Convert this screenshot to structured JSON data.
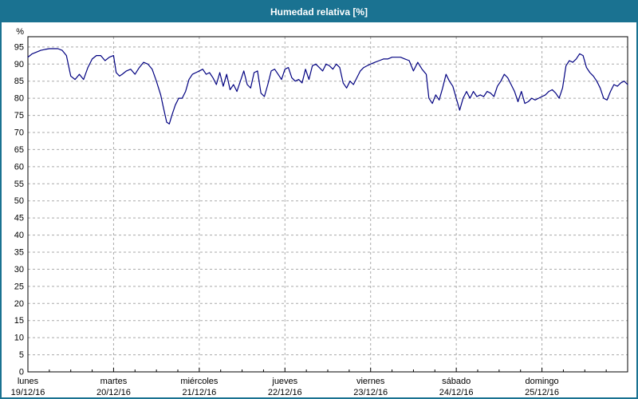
{
  "header": {
    "title": "Humedad relativa [%]"
  },
  "colors": {
    "accent": "#1a7291",
    "line": "#000080",
    "grid": "#a9a9a9",
    "axis": "#000000",
    "plot_bg": "#ffffff",
    "title_text": "#ffffff"
  },
  "chart_data": {
    "type": "line",
    "title": "Humedad relativa [%]",
    "xlabel": "",
    "ylabel": "%",
    "ylim": [
      0,
      98
    ],
    "yticks": [
      0,
      5,
      10,
      15,
      20,
      25,
      30,
      35,
      40,
      45,
      50,
      55,
      60,
      65,
      70,
      75,
      80,
      85,
      90,
      95
    ],
    "grid": true,
    "legend_position": "none",
    "x_days": [
      {
        "name": "lunes",
        "date": "19/12/16"
      },
      {
        "name": "martes",
        "date": "20/12/16"
      },
      {
        "name": "miércoles",
        "date": "21/12/16"
      },
      {
        "name": "jueves",
        "date": "22/12/16"
      },
      {
        "name": "viernes",
        "date": "23/12/16"
      },
      {
        "name": "sábado",
        "date": "24/12/16"
      },
      {
        "name": "domingo",
        "date": "25/12/16"
      }
    ],
    "series": [
      {
        "name": "Humedad relativa",
        "color": "#000080",
        "points": [
          [
            0.0,
            92.0
          ],
          [
            0.05,
            93.0
          ],
          [
            0.1,
            93.5
          ],
          [
            0.15,
            94.0
          ],
          [
            0.2,
            94.3
          ],
          [
            0.25,
            94.5
          ],
          [
            0.3,
            94.5
          ],
          [
            0.35,
            94.5
          ],
          [
            0.4,
            94.0
          ],
          [
            0.45,
            92.5
          ],
          [
            0.5,
            86.5
          ],
          [
            0.55,
            85.5
          ],
          [
            0.6,
            87.0
          ],
          [
            0.65,
            85.5
          ],
          [
            0.7,
            89.0
          ],
          [
            0.75,
            91.5
          ],
          [
            0.8,
            92.5
          ],
          [
            0.85,
            92.5
          ],
          [
            0.9,
            91.0
          ],
          [
            0.95,
            92.0
          ],
          [
            1.0,
            92.5
          ],
          [
            1.03,
            87.5
          ],
          [
            1.07,
            86.5
          ],
          [
            1.1,
            87.0
          ],
          [
            1.15,
            88.0
          ],
          [
            1.2,
            88.5
          ],
          [
            1.25,
            87.0
          ],
          [
            1.3,
            89.0
          ],
          [
            1.35,
            90.5
          ],
          [
            1.4,
            90.0
          ],
          [
            1.45,
            88.5
          ],
          [
            1.5,
            85.0
          ],
          [
            1.55,
            81.0
          ],
          [
            1.58,
            77.5
          ],
          [
            1.62,
            73.0
          ],
          [
            1.65,
            72.5
          ],
          [
            1.68,
            75.0
          ],
          [
            1.72,
            78.0
          ],
          [
            1.76,
            80.0
          ],
          [
            1.8,
            80.0
          ],
          [
            1.84,
            82.0
          ],
          [
            1.88,
            85.5
          ],
          [
            1.92,
            87.0
          ],
          [
            1.96,
            87.5
          ],
          [
            2.0,
            88.0
          ],
          [
            2.04,
            88.5
          ],
          [
            2.08,
            87.0
          ],
          [
            2.12,
            87.5
          ],
          [
            2.16,
            86.0
          ],
          [
            2.2,
            84.0
          ],
          [
            2.24,
            87.5
          ],
          [
            2.28,
            83.5
          ],
          [
            2.32,
            87.0
          ],
          [
            2.36,
            82.5
          ],
          [
            2.4,
            84.0
          ],
          [
            2.44,
            82.0
          ],
          [
            2.48,
            85.0
          ],
          [
            2.52,
            88.0
          ],
          [
            2.56,
            84.0
          ],
          [
            2.6,
            83.0
          ],
          [
            2.64,
            87.5
          ],
          [
            2.68,
            88.0
          ],
          [
            2.72,
            81.5
          ],
          [
            2.76,
            80.5
          ],
          [
            2.8,
            84.0
          ],
          [
            2.84,
            88.0
          ],
          [
            2.88,
            88.5
          ],
          [
            2.92,
            87.0
          ],
          [
            2.96,
            85.5
          ],
          [
            3.0,
            88.5
          ],
          [
            3.04,
            89.0
          ],
          [
            3.08,
            86.0
          ],
          [
            3.12,
            85.0
          ],
          [
            3.16,
            85.5
          ],
          [
            3.2,
            84.5
          ],
          [
            3.24,
            88.5
          ],
          [
            3.28,
            85.5
          ],
          [
            3.32,
            89.5
          ],
          [
            3.36,
            90.0
          ],
          [
            3.4,
            89.0
          ],
          [
            3.44,
            88.0
          ],
          [
            3.48,
            90.0
          ],
          [
            3.52,
            89.5
          ],
          [
            3.56,
            88.5
          ],
          [
            3.6,
            90.0
          ],
          [
            3.64,
            89.0
          ],
          [
            3.68,
            84.5
          ],
          [
            3.72,
            83.0
          ],
          [
            3.76,
            85.0
          ],
          [
            3.8,
            84.0
          ],
          [
            3.84,
            86.0
          ],
          [
            3.88,
            88.0
          ],
          [
            3.92,
            89.0
          ],
          [
            3.96,
            89.5
          ],
          [
            4.0,
            90.0
          ],
          [
            4.05,
            90.5
          ],
          [
            4.1,
            91.0
          ],
          [
            4.15,
            91.5
          ],
          [
            4.2,
            91.5
          ],
          [
            4.25,
            92.0
          ],
          [
            4.3,
            92.0
          ],
          [
            4.35,
            92.0
          ],
          [
            4.4,
            91.5
          ],
          [
            4.45,
            91.0
          ],
          [
            4.5,
            88.0
          ],
          [
            4.55,
            90.5
          ],
          [
            4.6,
            88.5
          ],
          [
            4.65,
            87.0
          ],
          [
            4.68,
            80.0
          ],
          [
            4.72,
            78.5
          ],
          [
            4.76,
            81.0
          ],
          [
            4.8,
            79.5
          ],
          [
            4.84,
            83.0
          ],
          [
            4.88,
            87.0
          ],
          [
            4.92,
            85.0
          ],
          [
            4.96,
            83.5
          ],
          [
            5.0,
            80.0
          ],
          [
            5.04,
            76.5
          ],
          [
            5.08,
            80.0
          ],
          [
            5.12,
            82.0
          ],
          [
            5.16,
            80.0
          ],
          [
            5.2,
            82.0
          ],
          [
            5.24,
            80.5
          ],
          [
            5.28,
            81.0
          ],
          [
            5.32,
            80.5
          ],
          [
            5.36,
            82.0
          ],
          [
            5.4,
            81.5
          ],
          [
            5.44,
            80.5
          ],
          [
            5.48,
            83.5
          ],
          [
            5.52,
            85.0
          ],
          [
            5.56,
            87.0
          ],
          [
            5.6,
            86.0
          ],
          [
            5.64,
            84.0
          ],
          [
            5.68,
            82.0
          ],
          [
            5.72,
            79.0
          ],
          [
            5.76,
            82.0
          ],
          [
            5.8,
            78.5
          ],
          [
            5.84,
            79.0
          ],
          [
            5.88,
            80.0
          ],
          [
            5.92,
            79.5
          ],
          [
            5.96,
            80.0
          ],
          [
            6.0,
            80.5
          ],
          [
            6.04,
            81.0
          ],
          [
            6.08,
            82.0
          ],
          [
            6.12,
            82.5
          ],
          [
            6.16,
            81.5
          ],
          [
            6.2,
            80.0
          ],
          [
            6.24,
            83.0
          ],
          [
            6.28,
            89.5
          ],
          [
            6.32,
            91.0
          ],
          [
            6.36,
            90.5
          ],
          [
            6.4,
            91.5
          ],
          [
            6.44,
            93.0
          ],
          [
            6.48,
            92.5
          ],
          [
            6.52,
            89.0
          ],
          [
            6.56,
            87.5
          ],
          [
            6.6,
            86.5
          ],
          [
            6.64,
            85.0
          ],
          [
            6.68,
            83.0
          ],
          [
            6.72,
            80.0
          ],
          [
            6.76,
            79.5
          ],
          [
            6.8,
            82.0
          ],
          [
            6.84,
            84.0
          ],
          [
            6.88,
            83.5
          ],
          [
            6.92,
            84.5
          ],
          [
            6.96,
            85.0
          ],
          [
            7.0,
            84.0
          ]
        ]
      }
    ]
  }
}
